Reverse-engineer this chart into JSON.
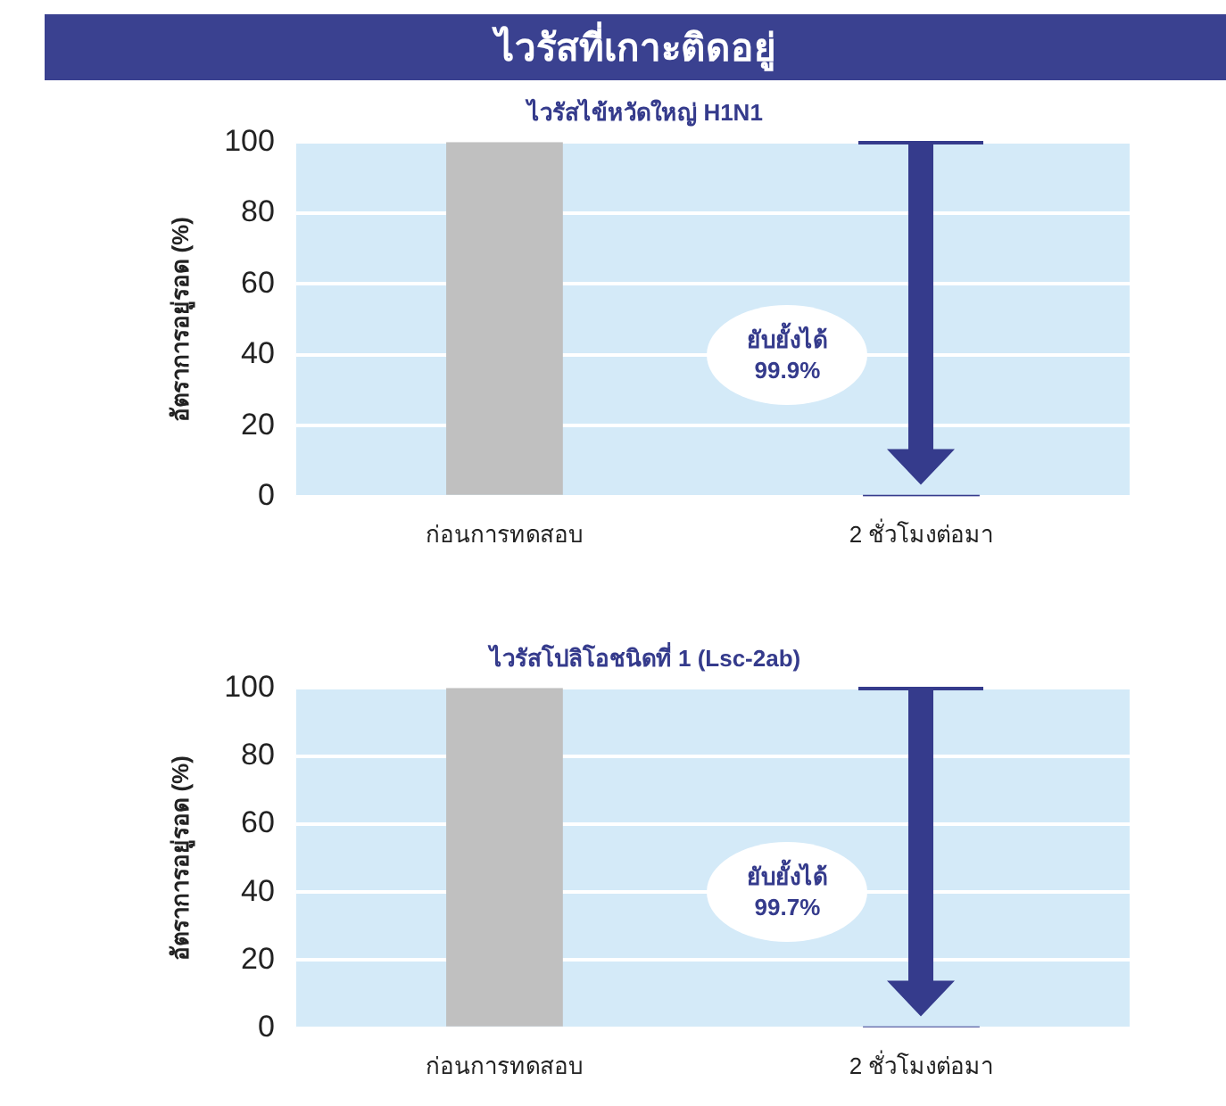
{
  "chart_data": [
    {
      "type": "bar",
      "title": "ไวรัสที่เกาะติดอยู่",
      "subtitle": "ไวรัสไข้หวัดใหญ่ H1N1",
      "ylabel": "อัตราการอยู่รอด (%)",
      "categories": [
        "ก่อนการทดสอบ",
        "2 ชั่วโมงต่อมา"
      ],
      "colors": [
        "#c0c0c0",
        "#353b8c"
      ],
      "values": [
        100,
        0.1
      ],
      "ylim": [
        0,
        100
      ],
      "yticks": [
        0,
        20,
        40,
        60,
        80,
        100
      ],
      "grid": "y",
      "legend": false,
      "annotations": [
        "ยับยั้งได้ 99.9%"
      ]
    },
    {
      "type": "bar",
      "title": "ไวรัสโปลิโอชนิดที่ 1 (Lsc-2ab)",
      "ylabel": "อัตราการอยู่รอด (%)",
      "categories": [
        "ก่อนการทดสอบ",
        "2 ชั่วโมงต่อมา"
      ],
      "colors": [
        "#c0c0c0",
        "#353b8c"
      ],
      "values": [
        100,
        0.3
      ],
      "ylim": [
        0,
        100
      ],
      "yticks": [
        0,
        20,
        40,
        60,
        80,
        100
      ],
      "grid": "y",
      "legend": false,
      "annotations": [
        "ยับยั้งได้ 99.7%"
      ]
    }
  ]
}
